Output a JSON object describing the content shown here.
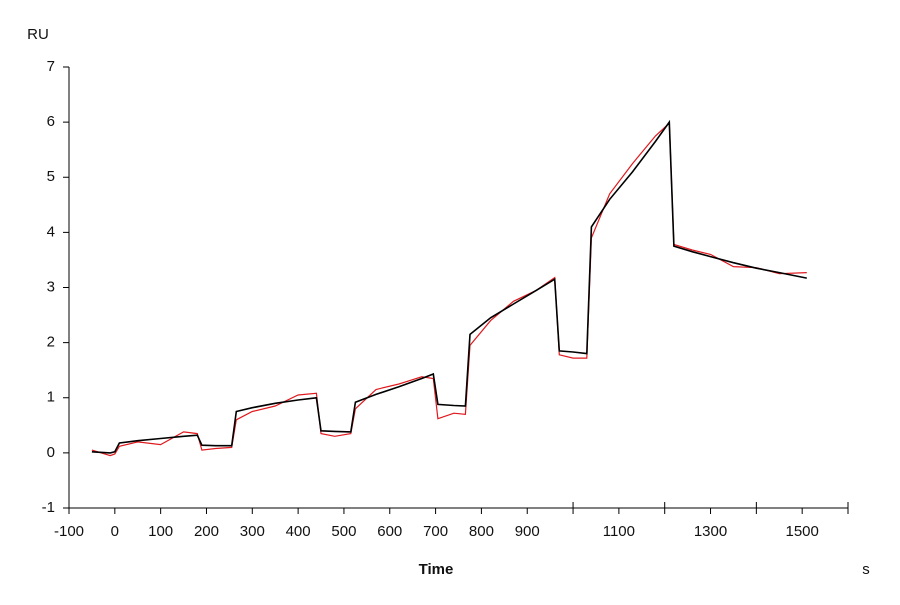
{
  "chart_data": {
    "type": "line",
    "y_label": "RU",
    "x_label": "Time",
    "x_unit": "s",
    "x": [
      -50,
      -10,
      0,
      10,
      50,
      100,
      150,
      180,
      190,
      220,
      255,
      265,
      300,
      350,
      400,
      440,
      450,
      480,
      515,
      525,
      570,
      620,
      670,
      695,
      705,
      740,
      765,
      775,
      820,
      870,
      920,
      960,
      970,
      1000,
      1030,
      1040,
      1080,
      1130,
      1180,
      1210,
      1220,
      1260,
      1300,
      1350,
      1400,
      1450,
      1510
    ],
    "series": [
      {
        "color": "#e0191e",
        "values": [
          0.05,
          -0.05,
          -0.02,
          0.12,
          0.2,
          0.15,
          0.38,
          0.35,
          0.05,
          0.08,
          0.1,
          0.6,
          0.75,
          0.85,
          1.05,
          1.08,
          0.35,
          0.3,
          0.35,
          0.8,
          1.15,
          1.25,
          1.38,
          1.35,
          0.62,
          0.72,
          0.7,
          1.95,
          2.4,
          2.75,
          2.95,
          3.18,
          1.78,
          1.72,
          1.72,
          3.9,
          4.7,
          5.25,
          5.75,
          5.98,
          3.78,
          3.68,
          3.6,
          3.38,
          3.36,
          3.25,
          3.27
        ]
      },
      {
        "color": "#000000",
        "values": [
          0.02,
          0.0,
          0.02,
          0.18,
          0.22,
          0.26,
          0.3,
          0.32,
          0.14,
          0.13,
          0.13,
          0.75,
          0.82,
          0.9,
          0.96,
          1.0,
          0.4,
          0.39,
          0.38,
          0.92,
          1.06,
          1.2,
          1.35,
          1.43,
          0.88,
          0.86,
          0.85,
          2.15,
          2.45,
          2.7,
          2.95,
          3.15,
          1.85,
          1.83,
          1.8,
          4.1,
          4.6,
          5.1,
          5.65,
          6.0,
          3.75,
          3.65,
          3.56,
          3.45,
          3.35,
          3.27,
          3.17
        ]
      }
    ],
    "xlim": [
      -100,
      1600
    ],
    "xticks": [
      -100,
      0,
      100,
      200,
      300,
      400,
      500,
      600,
      700,
      800,
      900,
      1100,
      1300,
      1500
    ],
    "xminorticks": [
      1000,
      1200,
      1400,
      1600
    ],
    "ylim": [
      -1,
      7
    ],
    "yticks": [
      -1,
      0,
      1,
      2,
      3,
      4,
      5,
      6,
      7
    ]
  }
}
